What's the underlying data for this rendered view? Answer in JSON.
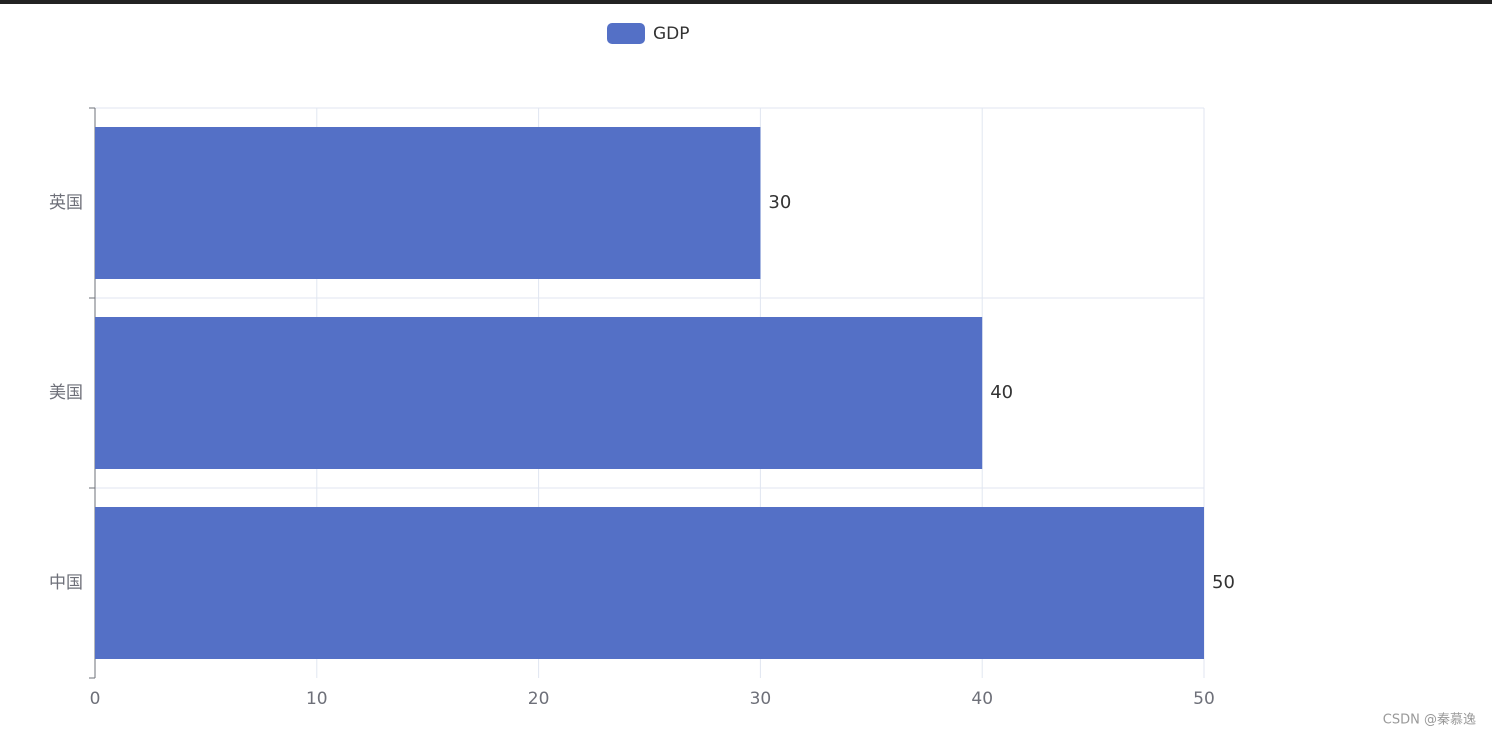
{
  "chart_data": {
    "type": "hbar",
    "legend": "GDP",
    "categories": [
      "中国",
      "美国",
      "英国"
    ],
    "series": [
      {
        "name": "GDP",
        "color": "#5470c6",
        "values": [
          50,
          40,
          30
        ]
      }
    ],
    "xlim": [
      0,
      50
    ],
    "xticks": [
      0,
      10,
      20,
      30,
      40,
      50
    ],
    "grid": true,
    "legend_position": "top"
  },
  "watermark": "CSDN @秦慕逸"
}
